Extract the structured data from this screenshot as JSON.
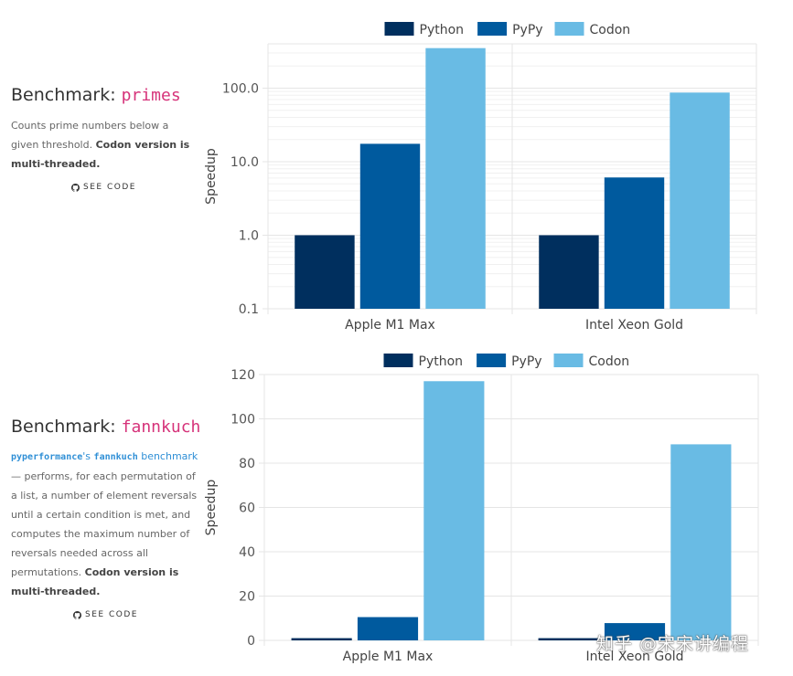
{
  "benchmarks": [
    {
      "title_prefix": "Benchmark: ",
      "title_code": "primes",
      "desc_plain": "Counts prime numbers below a given threshold. ",
      "desc_bold": "Codon version is multi-threaded.",
      "see_code": "SEE CODE"
    },
    {
      "title_prefix": "Benchmark: ",
      "title_code": "fannkuch",
      "desc_code1": "pyperformance",
      "desc_s": "'s ",
      "desc_code2": "fannkuch",
      "desc_link": " benchmark",
      "desc_plain": " — performs, for each permutation of a list, a number of element reversals until a certain condition is met, and computes the maximum number of reversals needed across all permutations. ",
      "desc_bold": "Codon version is multi-threaded.",
      "see_code": "SEE CODE"
    }
  ],
  "watermark": "知乎 @宋宋讲编程",
  "colors": {
    "Python": "#002f5e",
    "PyPy": "#005a9e",
    "Codon": "#69bbe4",
    "grid": "#e5e5e5"
  },
  "chart_data": [
    {
      "type": "bar",
      "scale": "log",
      "categories": [
        "Apple M1 Max",
        "Intel Xeon Gold"
      ],
      "series": [
        {
          "name": "Python",
          "values": [
            1.0,
            1.0
          ]
        },
        {
          "name": "PyPy",
          "values": [
            17.5,
            6.1
          ]
        },
        {
          "name": "Codon",
          "values": [
            350,
            87
          ]
        }
      ],
      "ylabel": "Speedup",
      "ylim": [
        0.1,
        400
      ],
      "yticks": [
        0.1,
        1.0,
        10.0,
        100.0
      ],
      "ytick_labels": [
        "0.1",
        "1.0",
        "10.0",
        "100.0"
      ],
      "legend": "top-center",
      "grid": true
    },
    {
      "type": "bar",
      "scale": "linear",
      "categories": [
        "Apple M1 Max",
        "Intel Xeon Gold"
      ],
      "series": [
        {
          "name": "Python",
          "values": [
            1,
            1
          ]
        },
        {
          "name": "PyPy",
          "values": [
            10.5,
            7.8
          ]
        },
        {
          "name": "Codon",
          "values": [
            117,
            88.5
          ]
        }
      ],
      "ylabel": "Speedup",
      "ylim": [
        0,
        120
      ],
      "yticks": [
        0,
        20,
        40,
        60,
        80,
        100,
        120
      ],
      "ytick_labels": [
        "0",
        "20",
        "40",
        "60",
        "80",
        "100",
        "120"
      ],
      "legend": "top-center",
      "grid": true
    }
  ]
}
